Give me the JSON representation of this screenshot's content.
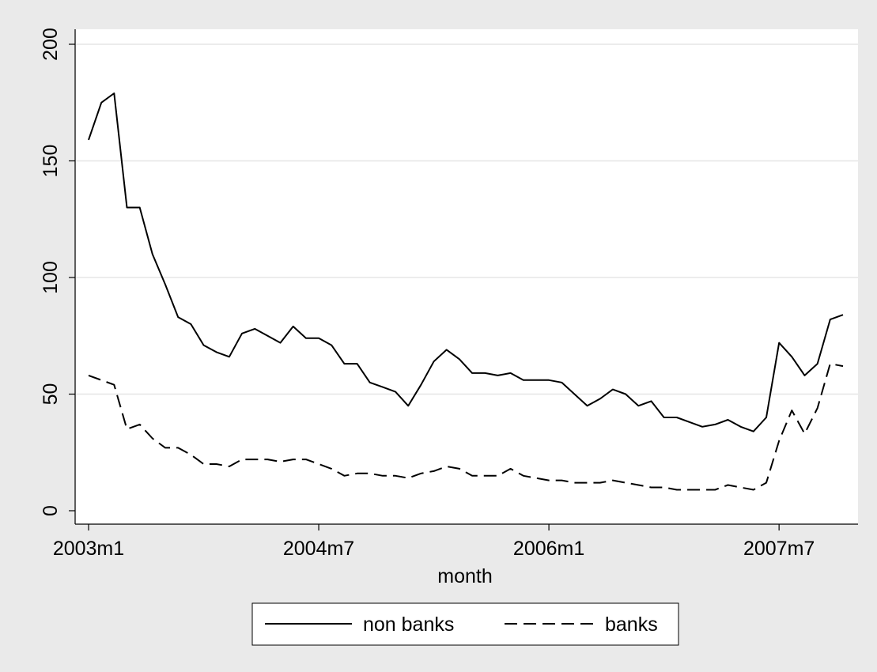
{
  "chart_data": {
    "type": "line",
    "title": "",
    "xlabel": "month",
    "ylabel": "",
    "x_tick_labels": [
      "2003m1",
      "2004m7",
      "2006m1",
      "2007m7"
    ],
    "x_tick_index": [
      0,
      18,
      36,
      54
    ],
    "y_ticks": [
      0,
      50,
      100,
      150,
      200
    ],
    "ylim": [
      0,
      200
    ],
    "grid": "horizontal",
    "legend_position": "bottom",
    "series": [
      {
        "name": "non banks",
        "style": "solid",
        "values": [
          159,
          175,
          179,
          130,
          130,
          110,
          97,
          83,
          80,
          71,
          68,
          66,
          76,
          78,
          75,
          72,
          79,
          74,
          74,
          71,
          63,
          63,
          55,
          53,
          51,
          45,
          54,
          64,
          69,
          65,
          59,
          59,
          58,
          59,
          56,
          56,
          56,
          55,
          50,
          45,
          48,
          52,
          50,
          45,
          47,
          40,
          40,
          38,
          36,
          37,
          39,
          36,
          34,
          40,
          72,
          66,
          58,
          63,
          82,
          84
        ]
      },
      {
        "name": "banks",
        "style": "dashed",
        "values": [
          58,
          56,
          54,
          35,
          37,
          31,
          27,
          27,
          24,
          20,
          20,
          19,
          22,
          22,
          22,
          21,
          22,
          22,
          20,
          18,
          15,
          16,
          16,
          15,
          15,
          14,
          16,
          17,
          19,
          18,
          15,
          15,
          15,
          18,
          15,
          14,
          13,
          13,
          12,
          12,
          12,
          13,
          12,
          11,
          10,
          10,
          9,
          9,
          9,
          9,
          11,
          10,
          9,
          12,
          30,
          43,
          33,
          44,
          63,
          62
        ]
      }
    ],
    "colors": {
      "line": "#000000",
      "plot_bg": "#ffffff",
      "outer_bg": "#eaeaea",
      "grid": "#e6e6e6"
    }
  }
}
